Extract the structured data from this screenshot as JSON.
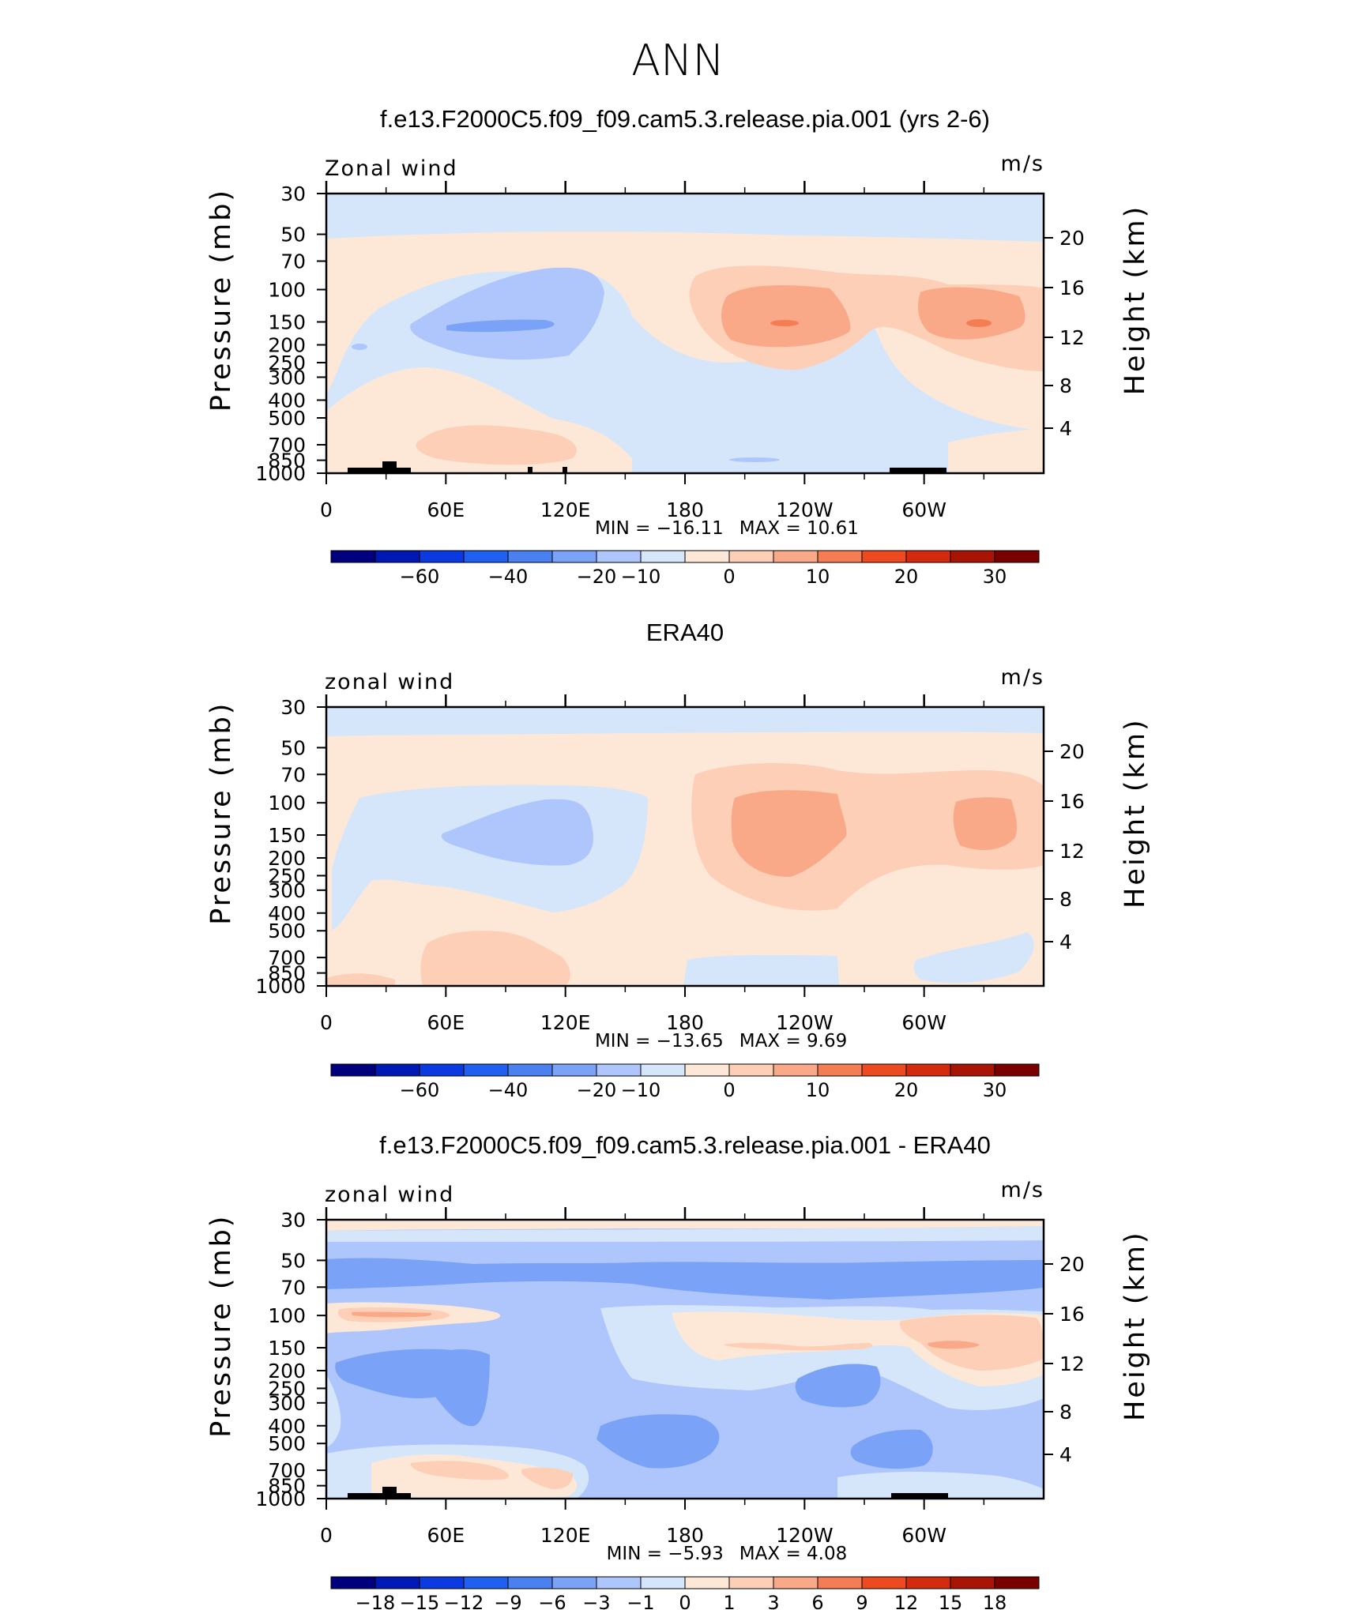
{
  "page_title": "ANN",
  "colors": {
    "frame": "#000000",
    "topography": "#000000",
    "palette_main": [
      "#00007f",
      "#0018b4",
      "#0a3ae0",
      "#2060f0",
      "#4a80f0",
      "#7aa2f6",
      "#aec6fb",
      "#d5e6fb",
      "#fde8d8",
      "#fccfb6",
      "#f9a988",
      "#f57d54",
      "#ee4a22",
      "#d42a0e",
      "#a81405",
      "#7a0000"
    ],
    "palette_diff": [
      "#00007f",
      "#0018b4",
      "#0a3ae0",
      "#2060f0",
      "#4a80f0",
      "#7aa2f6",
      "#aec6fb",
      "#d5e6fb",
      "#fde8d8",
      "#fccfb6",
      "#f9a988",
      "#f57d54",
      "#ee4a22",
      "#d42a0e",
      "#a81405",
      "#7a0000"
    ]
  },
  "chart_data": [
    {
      "type": "heatmap",
      "title": "f.e13.F2000C5.f09_f09.cam5.3.release.pia.001 (yrs 2-6)",
      "variable_label": "Zonal wind",
      "units": "m/s",
      "ylabel": "Pressure (mb)",
      "ylabel_right": "Height (km)",
      "y_ticks": [
        "30",
        "50",
        "70",
        "100",
        "150",
        "200",
        "250",
        "300",
        "400",
        "500",
        "700",
        "850",
        "1000"
      ],
      "y_ticks_right": [
        "20",
        "16",
        "12",
        "8",
        "4"
      ],
      "x_ticks": [
        "0",
        "60E",
        "120E",
        "180",
        "120W",
        "60W"
      ],
      "min_label": "MIN  =  −16.11",
      "max_label": "MAX  =    10.61",
      "colorbar_ticks": [
        "−60",
        "−40",
        "−20",
        "−10",
        "0",
        "10",
        "20",
        "30"
      ],
      "blobs": [
        {
          "x": 0.62,
          "y": 0.43,
          "rx": 0.13,
          "ry": 0.11,
          "level": 10
        },
        {
          "x": 0.9,
          "y": 0.43,
          "rx": 0.12,
          "ry": 0.1,
          "level": 10
        },
        {
          "x": 0.26,
          "y": 0.45,
          "rx": 0.16,
          "ry": 0.12,
          "level": 6
        },
        {
          "x": 0.28,
          "y": 0.85,
          "rx": 0.13,
          "ry": 0.09,
          "level": 9
        }
      ]
    },
    {
      "type": "heatmap",
      "title": "ERA40",
      "variable_label": "zonal wind",
      "units": "m/s",
      "ylabel": "Pressure (mb)",
      "ylabel_right": "Height (km)",
      "y_ticks": [
        "30",
        "50",
        "70",
        "100",
        "150",
        "200",
        "250",
        "300",
        "400",
        "500",
        "700",
        "850",
        "1000"
      ],
      "y_ticks_right": [
        "20",
        "16",
        "12",
        "8",
        "4"
      ],
      "x_ticks": [
        "0",
        "60E",
        "120E",
        "180",
        "120W",
        "60W"
      ],
      "min_label": "MIN  =  −13.65",
      "max_label": "MAX  =     9.69",
      "colorbar_ticks": [
        "−60",
        "−40",
        "−20",
        "−10",
        "0",
        "10",
        "20",
        "30"
      ]
    },
    {
      "type": "heatmap",
      "title": "f.e13.F2000C5.f09_f09.cam5.3.release.pia.001 - ERA40",
      "variable_label": "zonal wind",
      "units": "m/s",
      "ylabel": "Pressure (mb)",
      "ylabel_right": "Height (km)",
      "y_ticks": [
        "30",
        "50",
        "70",
        "100",
        "150",
        "200",
        "250",
        "300",
        "400",
        "500",
        "700",
        "850",
        "1000"
      ],
      "y_ticks_right": [
        "20",
        "16",
        "12",
        "8",
        "4"
      ],
      "x_ticks": [
        "0",
        "60E",
        "120E",
        "180",
        "120W",
        "60W"
      ],
      "min_label": "MIN  =    −5.93",
      "max_label": "MAX  =    4.08",
      "colorbar_ticks": [
        "−18",
        "−15",
        "−12",
        "−9",
        "−6",
        "−3",
        "−1",
        "0",
        "1",
        "3",
        "6",
        "9",
        "12",
        "15",
        "18"
      ]
    }
  ]
}
